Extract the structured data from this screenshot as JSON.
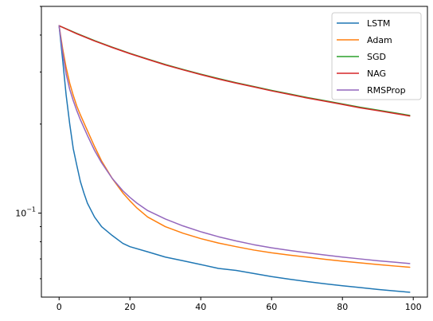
{
  "chart_data": {
    "type": "line",
    "title": "",
    "xlabel": "",
    "ylabel": "",
    "xlim": [
      -5,
      104
    ],
    "ylim": [
      0.052,
      0.5
    ],
    "yscale": "log",
    "grid": false,
    "legend_position": "upper right",
    "x_ticks": [
      0,
      20,
      40,
      60,
      80,
      100
    ],
    "x_tick_labels": [
      "0",
      "20",
      "40",
      "60",
      "80",
      "100"
    ],
    "y_ticks": [
      0.1
    ],
    "y_tick_labels": [
      "10^-1"
    ],
    "series": [
      {
        "name": "LSTM",
        "color": "#1f77b4",
        "points": [
          [
            0,
            0.43
          ],
          [
            1,
            0.33
          ],
          [
            2,
            0.25
          ],
          [
            3,
            0.2
          ],
          [
            4,
            0.165
          ],
          [
            5,
            0.145
          ],
          [
            6,
            0.128
          ],
          [
            7,
            0.117
          ],
          [
            8,
            0.108
          ],
          [
            10,
            0.097
          ],
          [
            12,
            0.09
          ],
          [
            15,
            0.084
          ],
          [
            18,
            0.079
          ],
          [
            20,
            0.077
          ],
          [
            25,
            0.074
          ],
          [
            30,
            0.071
          ],
          [
            35,
            0.069
          ],
          [
            40,
            0.067
          ],
          [
            45,
            0.065
          ],
          [
            50,
            0.064
          ],
          [
            55,
            0.0625
          ],
          [
            60,
            0.061
          ],
          [
            65,
            0.0598
          ],
          [
            70,
            0.0587
          ],
          [
            75,
            0.0577
          ],
          [
            80,
            0.0568
          ],
          [
            85,
            0.056
          ],
          [
            90,
            0.0552
          ],
          [
            95,
            0.0545
          ],
          [
            99,
            0.054
          ]
        ]
      },
      {
        "name": "Adam",
        "color": "#ff7f0e",
        "points": [
          [
            0,
            0.43
          ],
          [
            1,
            0.36
          ],
          [
            2,
            0.31
          ],
          [
            3,
            0.275
          ],
          [
            4,
            0.25
          ],
          [
            5,
            0.23
          ],
          [
            6,
            0.215
          ],
          [
            8,
            0.19
          ],
          [
            10,
            0.168
          ],
          [
            12,
            0.15
          ],
          [
            15,
            0.131
          ],
          [
            18,
            0.117
          ],
          [
            20,
            0.11
          ],
          [
            22,
            0.104
          ],
          [
            25,
            0.097
          ],
          [
            30,
            0.09
          ],
          [
            35,
            0.0855
          ],
          [
            40,
            0.082
          ],
          [
            45,
            0.0792
          ],
          [
            50,
            0.077
          ],
          [
            55,
            0.075
          ],
          [
            60,
            0.0734
          ],
          [
            65,
            0.0721
          ],
          [
            70,
            0.071
          ],
          [
            75,
            0.0698
          ],
          [
            80,
            0.0688
          ],
          [
            85,
            0.0679
          ],
          [
            90,
            0.067
          ],
          [
            95,
            0.0662
          ],
          [
            99,
            0.0656
          ]
        ]
      },
      {
        "name": "SGD",
        "color": "#2ca02c",
        "points": [
          [
            0,
            0.43
          ],
          [
            5,
            0.405
          ],
          [
            10,
            0.383
          ],
          [
            15,
            0.364
          ],
          [
            20,
            0.347
          ],
          [
            25,
            0.332
          ],
          [
            30,
            0.318
          ],
          [
            35,
            0.306
          ],
          [
            40,
            0.295
          ],
          [
            45,
            0.285
          ],
          [
            50,
            0.276
          ],
          [
            55,
            0.268
          ],
          [
            60,
            0.26
          ],
          [
            65,
            0.253
          ],
          [
            70,
            0.246
          ],
          [
            75,
            0.24
          ],
          [
            80,
            0.234
          ],
          [
            85,
            0.228
          ],
          [
            90,
            0.223
          ],
          [
            95,
            0.218
          ],
          [
            99,
            0.214
          ]
        ]
      },
      {
        "name": "NAG",
        "color": "#d62728",
        "points": [
          [
            0,
            0.43
          ],
          [
            5,
            0.404
          ],
          [
            10,
            0.382
          ],
          [
            15,
            0.363
          ],
          [
            20,
            0.346
          ],
          [
            25,
            0.331
          ],
          [
            30,
            0.317
          ],
          [
            35,
            0.305
          ],
          [
            40,
            0.294
          ],
          [
            45,
            0.284
          ],
          [
            50,
            0.275
          ],
          [
            55,
            0.267
          ],
          [
            60,
            0.259
          ],
          [
            65,
            0.252
          ],
          [
            70,
            0.245
          ],
          [
            75,
            0.239
          ],
          [
            80,
            0.233
          ],
          [
            85,
            0.227
          ],
          [
            90,
            0.222
          ],
          [
            95,
            0.217
          ],
          [
            99,
            0.213
          ]
        ]
      },
      {
        "name": "RMSProp",
        "color": "#9467bd",
        "points": [
          [
            0,
            0.43
          ],
          [
            1,
            0.35
          ],
          [
            2,
            0.295
          ],
          [
            3,
            0.262
          ],
          [
            4,
            0.24
          ],
          [
            5,
            0.222
          ],
          [
            6,
            0.207
          ],
          [
            8,
            0.183
          ],
          [
            10,
            0.163
          ],
          [
            12,
            0.148
          ],
          [
            15,
            0.131
          ],
          [
            18,
            0.119
          ],
          [
            20,
            0.113
          ],
          [
            22,
            0.108
          ],
          [
            25,
            0.102
          ],
          [
            30,
            0.0955
          ],
          [
            35,
            0.0905
          ],
          [
            40,
            0.0865
          ],
          [
            45,
            0.0832
          ],
          [
            50,
            0.0805
          ],
          [
            55,
            0.0782
          ],
          [
            60,
            0.0763
          ],
          [
            65,
            0.0748
          ],
          [
            70,
            0.0734
          ],
          [
            75,
            0.0722
          ],
          [
            80,
            0.071
          ],
          [
            85,
            0.07
          ],
          [
            90,
            0.069
          ],
          [
            95,
            0.0682
          ],
          [
            99,
            0.0675
          ]
        ]
      }
    ]
  }
}
